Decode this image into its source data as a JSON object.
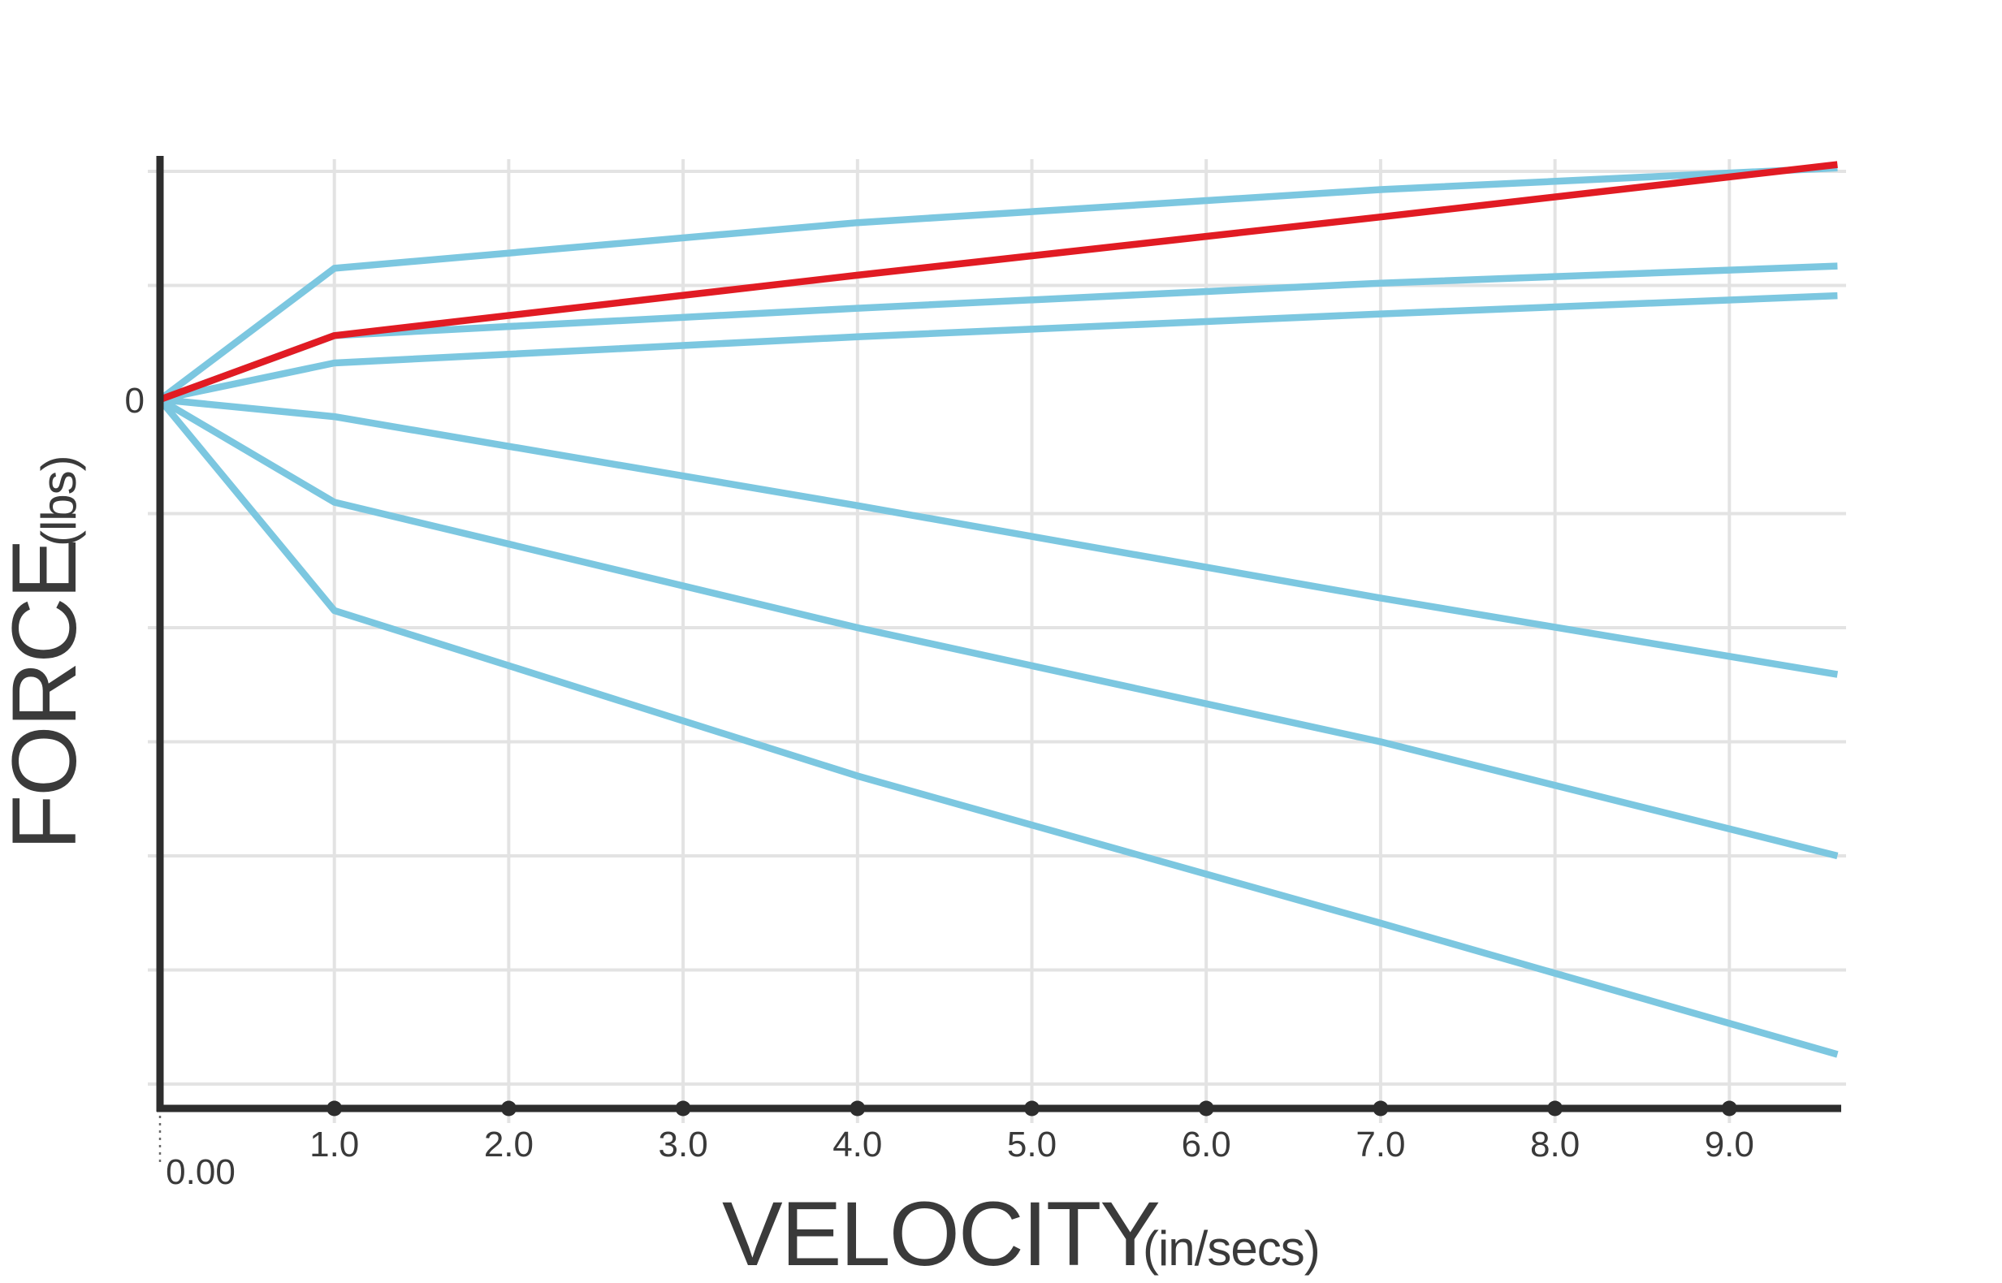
{
  "colors": {
    "background": "#ffffff",
    "blue_line": "#7cc7e0",
    "red_line": "#e11b23",
    "axis": "#2d2d2d",
    "grid": "#e3e3e3",
    "text": "#3a3a3a"
  },
  "chart_data": {
    "type": "line",
    "title": "",
    "xlabel": "VELOCITY",
    "xlabel_unit": "(in/secs)",
    "ylabel": "FORCE",
    "ylabel_unit": "(lbs)",
    "y_zero_label": "0",
    "origin_tick_label": "0.00",
    "x_ticks": [
      "1.0",
      "2.0",
      "3.0",
      "4.0",
      "5.0",
      "6.0",
      "7.0",
      "8.0",
      "9.0"
    ],
    "x_tick_values": [
      1,
      2,
      3,
      4,
      5,
      6,
      7,
      8,
      9
    ],
    "xlim": [
      0,
      9.64
    ],
    "ylim_gridline_units": [
      -6.21,
      2.11
    ],
    "y_gridlines_units": [
      2,
      1,
      -1,
      -2,
      -3,
      -4,
      -5,
      -6
    ],
    "y_axis_unlabeled_except_zero": true,
    "grid": true,
    "legend_position": "none",
    "x": [
      0,
      1.0,
      4.0,
      7.0,
      9.62
    ],
    "series": [
      {
        "name": "blue-line-1",
        "color_key": "blue_line",
        "values": [
          0,
          1.15,
          1.55,
          1.84,
          2.03
        ]
      },
      {
        "name": "blue-line-2",
        "color_key": "blue_line",
        "values": [
          0,
          0.56,
          0.8,
          1.02,
          1.17
        ]
      },
      {
        "name": "blue-line-3",
        "color_key": "blue_line",
        "values": [
          0,
          0.32,
          0.55,
          0.75,
          0.91
        ]
      },
      {
        "name": "blue-line-4",
        "color_key": "blue_line",
        "values": [
          0,
          -0.15,
          -0.93,
          -1.74,
          -2.41
        ]
      },
      {
        "name": "blue-line-5",
        "color_key": "blue_line",
        "values": [
          0,
          -0.9,
          -2.0,
          -3.0,
          -4.0
        ]
      },
      {
        "name": "blue-line-6",
        "color_key": "blue_line",
        "values": [
          0,
          -1.85,
          -3.3,
          -4.59,
          -5.74
        ]
      },
      {
        "name": "red-line",
        "color_key": "red_line",
        "values": [
          0,
          0.56,
          1.09,
          1.6,
          2.06
        ]
      }
    ]
  }
}
